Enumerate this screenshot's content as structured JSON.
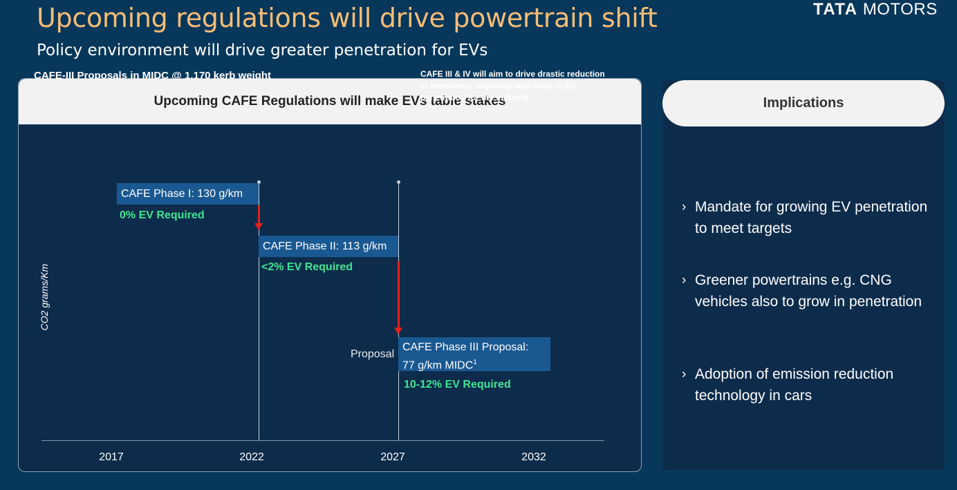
{
  "header": {
    "title": "Upcoming regulations will drive powertrain shift",
    "subtitle": "Policy environment will drive greater penetration for EVs",
    "logo_bold": "TATA",
    "logo_rest": "MOTORS"
  },
  "left_panel": {
    "heading": "Upcoming CAFE Regulations will make EVs table stakes",
    "chart_title": "CAFE-III Proposals  in MIDC @ 1,170 kerb weight",
    "note": "CAFE III & IV will aim to drive drastic reduction in emissions, requiring step jump in EV penetration for the industry",
    "ylabel": "CO2 grams/Km",
    "years": [
      "2017",
      "2022",
      "2027",
      "2032"
    ],
    "phases": [
      {
        "label": "CAFE Phase I: 130 g/km",
        "ev": "0% EV Required"
      },
      {
        "label": "CAFE Phase II: 113 g/km",
        "ev": "<2% EV Required"
      },
      {
        "label_line1": "CAFE Phase III Proposal:",
        "label_line2": "77 g/km MIDC",
        "footnote": "1",
        "ev": "10-12% EV Required"
      }
    ],
    "proposal_label": "Proposal"
  },
  "right_panel": {
    "heading": "Implications",
    "bullet_mark": "›",
    "bullets": [
      "Mandate for growing EV penetration to meet targets",
      "Greener powertrains e.g. CNG vehicles also to grow in penetration",
      "Adoption of emission reduction technology in cars"
    ]
  },
  "colors": {
    "background": "#07375a",
    "panel": "#0d2c4b",
    "title": "#f6bd76",
    "phase_box": "#1a5891",
    "ev_green": "#3ee592",
    "arrow_red": "#e0201b"
  }
}
